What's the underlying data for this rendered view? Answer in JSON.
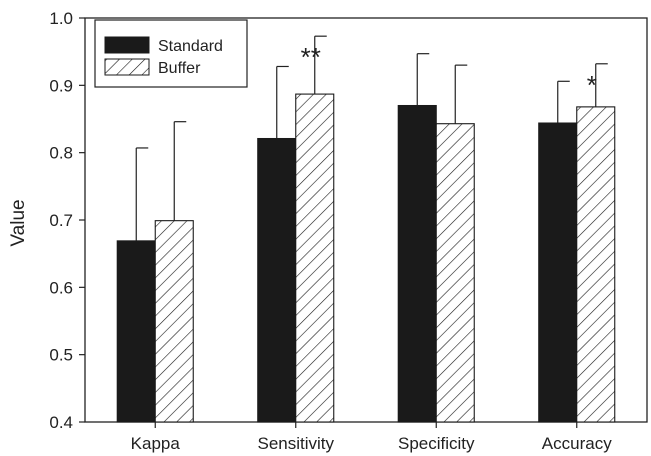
{
  "chart_data": {
    "type": "bar",
    "title": "",
    "xlabel": "",
    "ylabel": "Value",
    "ylim": [
      0.4,
      1.0
    ],
    "yticks": [
      "0.4",
      "0.5",
      "0.6",
      "0.7",
      "0.8",
      "0.9",
      "1.0"
    ],
    "categories": [
      "Kappa",
      "Sensitivity",
      "Specificity",
      "Accuracy"
    ],
    "series": [
      {
        "name": "Standard",
        "fill": "solid",
        "color": "#1a1a1a",
        "values": [
          0.669,
          0.821,
          0.87,
          0.844
        ],
        "error": [
          0.138,
          0.107,
          0.077,
          0.062
        ]
      },
      {
        "name": "Buffer",
        "fill": "hatched",
        "color": "#1a1a1a",
        "values": [
          0.699,
          0.887,
          0.843,
          0.868
        ],
        "error": [
          0.147,
          0.086,
          0.087,
          0.064
        ]
      }
    ],
    "annotations": [
      {
        "category": "Sensitivity",
        "text": "**"
      },
      {
        "category": "Accuracy",
        "text": "*"
      }
    ],
    "legend": {
      "position": "top-left"
    },
    "grid": false
  }
}
